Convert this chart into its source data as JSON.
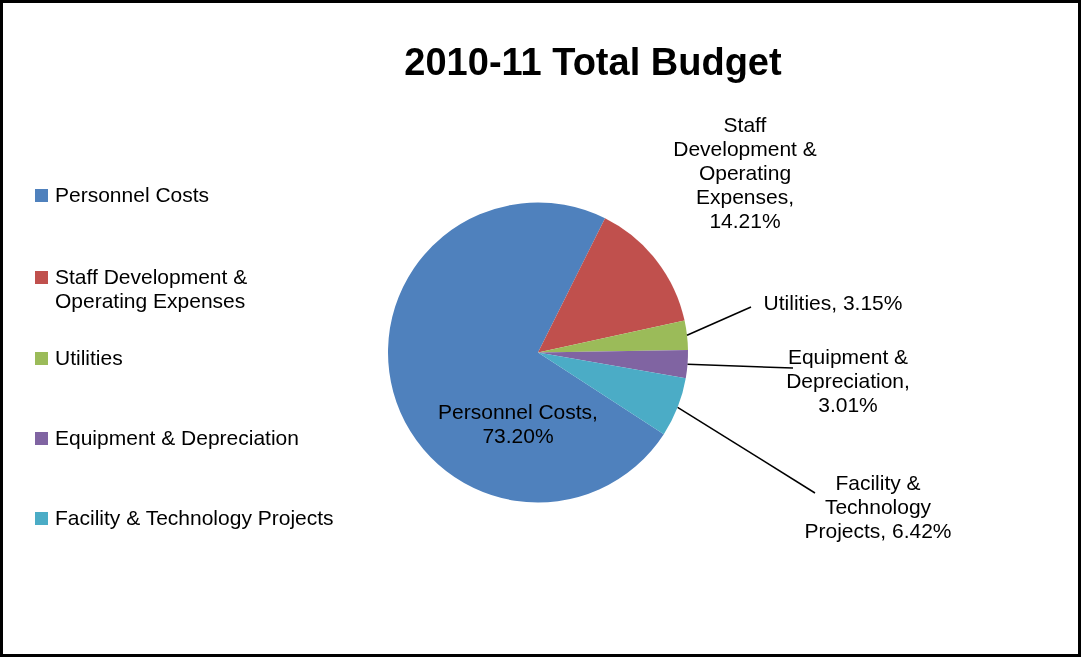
{
  "chart_data": {
    "type": "pie",
    "title": "2010-11 Total Budget",
    "categories": [
      "Personnel Costs",
      "Staff Development & Operating Expenses",
      "Utilities",
      "Equipment & Depreciation",
      "Facility & Technology Projects"
    ],
    "values": [
      73.2,
      14.21,
      3.15,
      3.01,
      6.42
    ],
    "value_labels": [
      "Personnel Costs, 73.20%",
      "Staff Development & Operating Expenses, 14.21%",
      "Utilities, 3.15%",
      "Equipment & Depreciation, 3.01%",
      "Facility & Technology Projects, 6.42%"
    ],
    "colors": [
      "#4f81bd",
      "#c0504d",
      "#9bbb59",
      "#8064a2",
      "#4bacc6"
    ],
    "legend": "left"
  }
}
